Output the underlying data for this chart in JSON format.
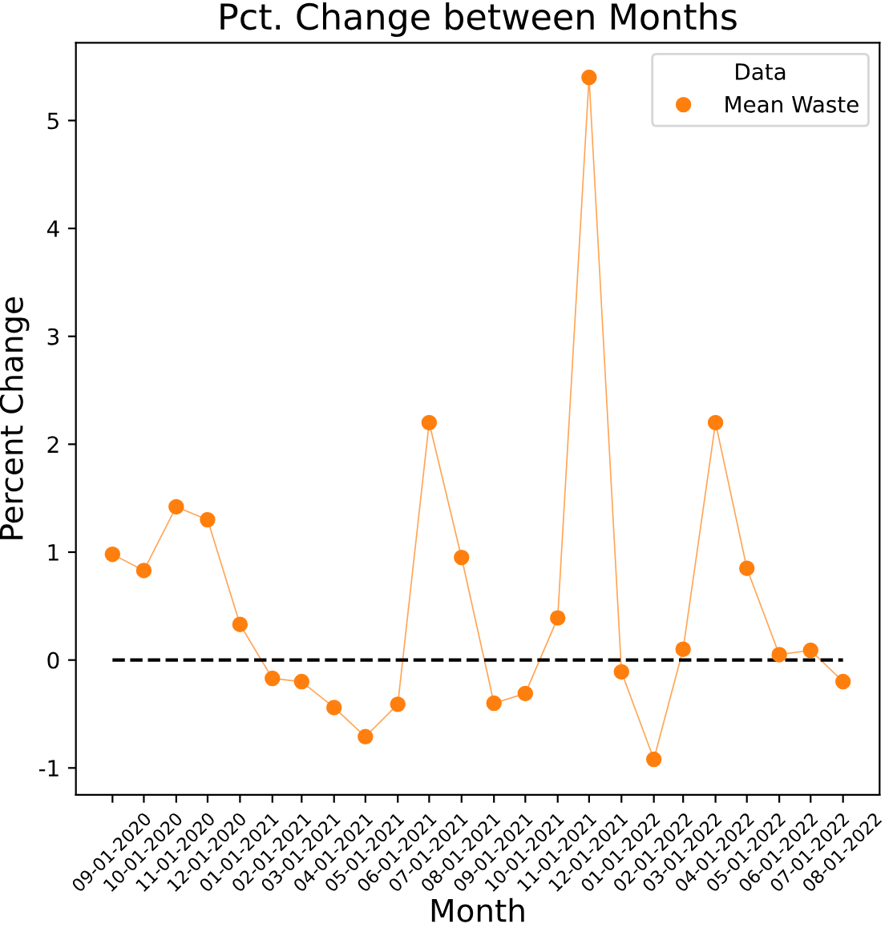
{
  "chart_data": {
    "type": "line",
    "title": "Pct. Change between Months",
    "xlabel": "Month",
    "ylabel": "Percent Change",
    "legend_title": "Data",
    "x": [
      "2020-09-01",
      "2020-10-01",
      "2020-11-01",
      "2020-12-01",
      "2021-01-01",
      "2021-02-01",
      "2021-03-01",
      "2021-04-01",
      "2021-05-01",
      "2021-06-01",
      "2021-07-01",
      "2021-08-01",
      "2021-09-01",
      "2021-10-01",
      "2021-11-01",
      "2021-12-01",
      "2022-01-01",
      "2022-02-01",
      "2022-03-01",
      "2022-04-01",
      "2022-05-01",
      "2022-06-01",
      "2022-07-01",
      "2022-08-01"
    ],
    "series": [
      {
        "name": "Mean Waste",
        "color": "#ff7f0e",
        "values": [
          0.98,
          0.83,
          1.42,
          1.3,
          0.33,
          -0.17,
          -0.2,
          -0.44,
          -0.71,
          -0.41,
          2.2,
          0.95,
          -0.4,
          -0.31,
          0.39,
          5.4,
          -0.11,
          -0.92,
          0.1,
          2.2,
          0.85,
          0.05,
          0.09,
          -0.2
        ]
      }
    ],
    "marker": "circle",
    "legend": "top right",
    "grid": false,
    "ref_lines": [
      {
        "axis": "y",
        "value": 0,
        "color": "#000000",
        "line_style": "dashed"
      }
    ],
    "xlim": [
      "2020-07-28",
      "2022-09-05"
    ],
    "ylim": [
      -1.25,
      5.72
    ],
    "yticks": [
      -1,
      0,
      1,
      2,
      3,
      4,
      5
    ],
    "xticks": [
      {
        "value": "2020-09-01",
        "label": "09-01-2020"
      },
      {
        "value": "2020-10-01",
        "label": "10-01-2020"
      },
      {
        "value": "2020-11-01",
        "label": "11-01-2020"
      },
      {
        "value": "2020-12-01",
        "label": "12-01-2020"
      },
      {
        "value": "2021-01-01",
        "label": "01-01-2021"
      },
      {
        "value": "2021-02-01",
        "label": "02-01-2021"
      },
      {
        "value": "2021-03-01",
        "label": "03-01-2021"
      },
      {
        "value": "2021-04-01",
        "label": "04-01-2021"
      },
      {
        "value": "2021-05-01",
        "label": "05-01-2021"
      },
      {
        "value": "2021-06-01",
        "label": "06-01-2021"
      },
      {
        "value": "2021-07-01",
        "label": "07-01-2021"
      },
      {
        "value": "2021-08-01",
        "label": "08-01-2021"
      },
      {
        "value": "2021-09-01",
        "label": "09-01-2021"
      },
      {
        "value": "2021-10-01",
        "label": "10-01-2021"
      },
      {
        "value": "2021-11-01",
        "label": "11-01-2021"
      },
      {
        "value": "2021-12-01",
        "label": "12-01-2021"
      },
      {
        "value": "2022-01-01",
        "label": "01-01-2022"
      },
      {
        "value": "2022-02-01",
        "label": "02-01-2022"
      },
      {
        "value": "2022-03-01",
        "label": "03-01-2022"
      },
      {
        "value": "2022-04-01",
        "label": "04-01-2022"
      },
      {
        "value": "2022-05-01",
        "label": "05-01-2022"
      },
      {
        "value": "2022-06-01",
        "label": "06-01-2022"
      },
      {
        "value": "2022-07-01",
        "label": "07-01-2022"
      },
      {
        "value": "2022-08-01",
        "label": "08-01-2022"
      }
    ]
  }
}
